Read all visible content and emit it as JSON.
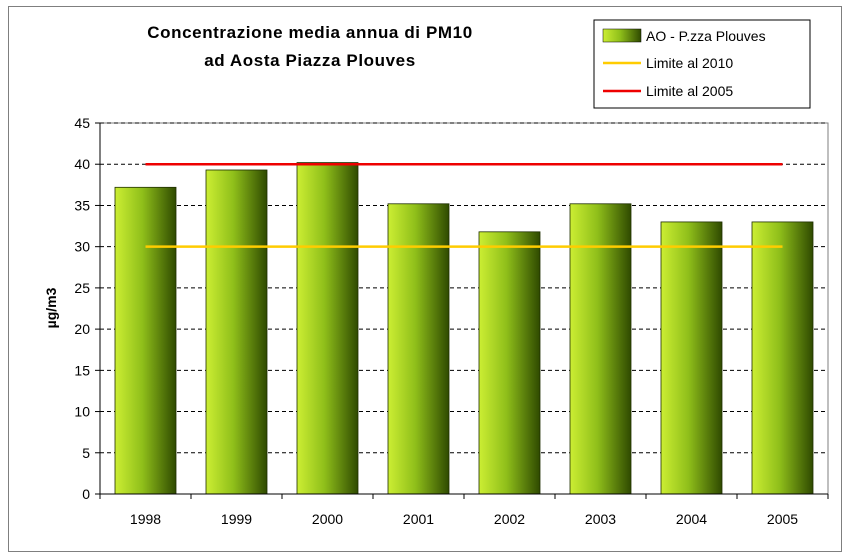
{
  "colors": {
    "bar_light": "#ccee33",
    "bar_mid": "#8fbf1a",
    "bar_dark": "#2f4a00",
    "limit_2010": "#ffcc00",
    "limit_2005": "#ee0000",
    "plot_bg": "#ffffff",
    "grid": "#000000"
  },
  "chart_data": {
    "type": "bar",
    "title": [
      "Concentrazione media annua di PM10",
      "ad Aosta Piazza Plouves"
    ],
    "xlabel": "",
    "ylabel": "µg/m3",
    "ylim": [
      0,
      45
    ],
    "yticks": [
      0,
      5,
      10,
      15,
      20,
      25,
      30,
      35,
      40,
      45
    ],
    "grid": "horizontal dashed",
    "legend_position": "top-right",
    "categories": [
      "1998",
      "1999",
      "2000",
      "2001",
      "2002",
      "2003",
      "2004",
      "2005"
    ],
    "series": [
      {
        "name": "AO - P.zza Plouves",
        "kind": "bar",
        "values": [
          37.2,
          39.3,
          40.2,
          35.2,
          31.8,
          35.2,
          33.0,
          33.0
        ]
      },
      {
        "name": "Limite al 2010",
        "kind": "line",
        "values": [
          30,
          30,
          30,
          30,
          30,
          30,
          30,
          30
        ]
      },
      {
        "name": "Limite al 2005",
        "kind": "line",
        "values": [
          40,
          40,
          40,
          40,
          40,
          40,
          40,
          40
        ]
      }
    ]
  }
}
